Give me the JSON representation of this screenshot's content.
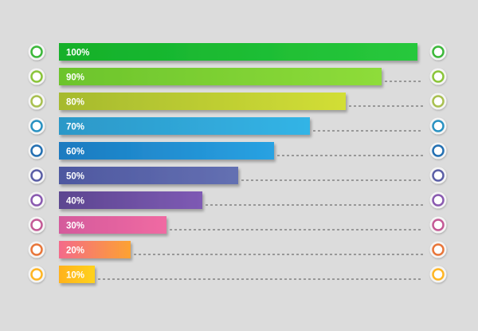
{
  "chart_data": {
    "type": "bar",
    "orientation": "horizontal",
    "x_range": [
      0,
      100
    ],
    "grid": false,
    "legend": "none",
    "bars": [
      {
        "label": "100%",
        "value": 100,
        "color_start": "#12b02a",
        "color_end": "#28c83c",
        "ring": "#3cb83a"
      },
      {
        "label": "90%",
        "value": 90,
        "color_start": "#6cc42c",
        "color_end": "#8edc3a",
        "ring": "#8bc53a"
      },
      {
        "label": "80%",
        "value": 80,
        "color_start": "#a6ba2e",
        "color_end": "#d2de36",
        "ring": "#a8c050"
      },
      {
        "label": "70%",
        "value": 70,
        "color_start": "#2c98c8",
        "color_end": "#33b4e6",
        "ring": "#2a92c2"
      },
      {
        "label": "60%",
        "value": 60,
        "color_start": "#1a7ac0",
        "color_end": "#29a2e2",
        "ring": "#2470b2"
      },
      {
        "label": "50%",
        "value": 50,
        "color_start": "#4e58a0",
        "color_end": "#6470b2",
        "ring": "#5b5fa6"
      },
      {
        "label": "40%",
        "value": 40,
        "color_start": "#5c4690",
        "color_end": "#7e5ab4",
        "ring": "#8a5ab0"
      },
      {
        "label": "30%",
        "value": 30,
        "color_start": "#d45a9c",
        "color_end": "#f06aa2",
        "ring": "#c45a96"
      },
      {
        "label": "20%",
        "value": 20,
        "color_start": "#f46a8a",
        "color_end": "#fca232",
        "ring": "#e8763a"
      },
      {
        "label": "10%",
        "value": 10,
        "color_start": "#ffb21e",
        "color_end": "#ffd21e",
        "ring": "#ffb624"
      }
    ]
  }
}
